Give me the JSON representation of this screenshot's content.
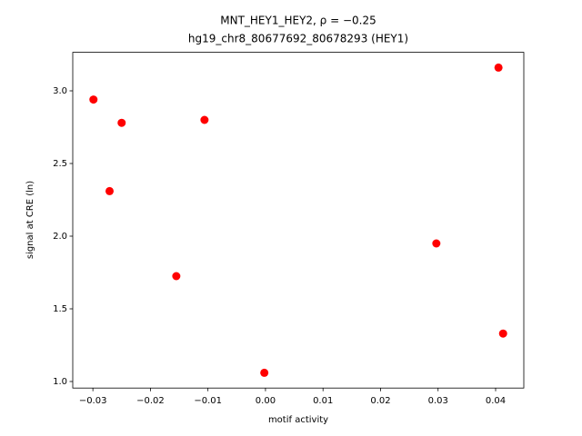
{
  "chart_data": {
    "type": "scatter",
    "title": "MNT_HEY1_HEY2, ρ = −0.25",
    "subtitle": "hg19_chr8_80677692_80678293 (HEY1)",
    "x_label": "motif activity",
    "y_label": "signal at CRE (ln)",
    "color": "#ff0000",
    "x": [
      -0.0299,
      -0.025,
      -0.0271,
      -0.0106,
      -0.0155,
      -0.0002,
      0.0297,
      0.0405,
      0.0413
    ],
    "y": [
      2.94,
      2.78,
      2.31,
      2.8,
      1.725,
      1.06,
      1.95,
      3.16,
      1.33
    ],
    "xlim": [
      -0.0335,
      0.0449
    ],
    "ylim": [
      0.955,
      3.265
    ],
    "xticks": [
      {
        "value": -0.03,
        "label": "−0.03"
      },
      {
        "value": -0.02,
        "label": "−0.02"
      },
      {
        "value": -0.01,
        "label": "−0.01"
      },
      {
        "value": 0,
        "label": "0.00"
      },
      0.01,
      0.02,
      0.03,
      0.04
    ],
    "yticks": [
      {
        "value": 1,
        "label": "1.0"
      },
      1.5,
      {
        "value": 2,
        "label": "2.0"
      },
      2.5,
      {
        "value": 3,
        "label": "3.0"
      }
    ],
    "grid": false
  }
}
